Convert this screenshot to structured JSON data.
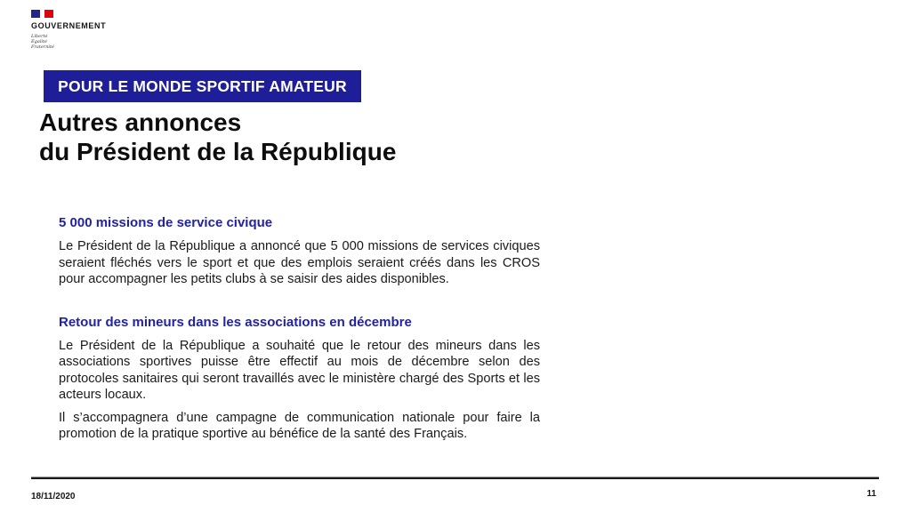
{
  "slide": {
    "logo": {
      "name": "GOUVERNEMENT",
      "motto": [
        "Liberté",
        "Égalité",
        "Fraternité"
      ]
    },
    "banner": "POUR LE MONDE SPORTIF AMATEUR",
    "title_line1": "Autres annonces",
    "title_line2": "du Président de la République",
    "sections": [
      {
        "heading": "5 000 missions de service civique",
        "paragraphs": [
          "Le Président de la République a annoncé que 5 000 missions de services civiques seraient fléchés vers le sport et que des emplois seraient créés dans les CROS pour accompagner les petits clubs à se saisir des aides disponibles."
        ]
      },
      {
        "heading": "Retour des mineurs dans les associations en décembre",
        "paragraphs": [
          "Le Président de la République a souhaité que le retour des mineurs dans les associations sportives puisse être effectif au mois de décembre selon des protocoles sanitaires qui seront travaillés avec le ministère chargé des Sports et les acteurs locaux.",
          "Il s’accompagnera d’une campagne de communication nationale pour faire la promotion de la pratique sportive au bénéfice de la santé des Français."
        ]
      }
    ],
    "footer": {
      "date": "18/11/2020",
      "page": "11"
    },
    "colors": {
      "banner_navy": "#1e1e99",
      "heading_blue": "#2222a5",
      "flag_blue": "#24248f",
      "flag_red": "#e1000f"
    }
  }
}
